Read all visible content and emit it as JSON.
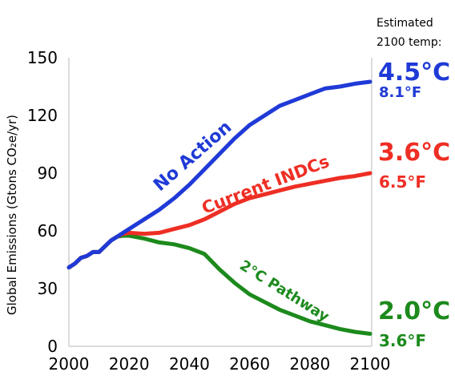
{
  "chart_data": {
    "type": "line",
    "ylabel": "Global Emissions (Gtons CO₂e/yr)",
    "xlim": [
      2000,
      2100
    ],
    "ylim": [
      0,
      150
    ],
    "x_ticks": [
      2000,
      2020,
      2040,
      2060,
      2080,
      2100
    ],
    "y_ticks": [
      0,
      30,
      60,
      90,
      120,
      150
    ],
    "grid": false,
    "header": [
      "Estimated",
      "2100 temp:"
    ],
    "series": [
      {
        "name": "No Action",
        "color": "#1f3ad6",
        "temp_c": "4.5°C",
        "temp_f": "8.1°F",
        "x": [
          2000,
          2002,
          2004,
          2006,
          2008,
          2010,
          2012,
          2014,
          2016,
          2018,
          2020,
          2025,
          2030,
          2035,
          2040,
          2045,
          2050,
          2055,
          2060,
          2065,
          2070,
          2075,
          2080,
          2085,
          2090,
          2095,
          2100
        ],
        "y": [
          41,
          43,
          46,
          47,
          49,
          49,
          52,
          55,
          57,
          59,
          61,
          66,
          71,
          77,
          84,
          92,
          100,
          108,
          115,
          120,
          125,
          128,
          131,
          134,
          135,
          136.5,
          137.5
        ]
      },
      {
        "name": "Current INDCs",
        "color": "#ee2e24",
        "temp_c": "3.6°C",
        "temp_f": "6.5°F",
        "x": [
          2000,
          2002,
          2004,
          2006,
          2008,
          2010,
          2012,
          2014,
          2016,
          2018,
          2020,
          2025,
          2030,
          2035,
          2040,
          2045,
          2050,
          2055,
          2060,
          2065,
          2070,
          2075,
          2080,
          2085,
          2090,
          2095,
          2100
        ],
        "y": [
          41,
          43,
          46,
          47,
          49,
          49,
          52,
          55,
          57,
          58.5,
          59,
          58.5,
          59,
          61,
          63,
          66,
          70,
          74,
          77,
          79,
          81,
          83,
          84.5,
          86,
          87.5,
          88.5,
          90
        ]
      },
      {
        "name": "2°C Pathway",
        "color": "#1c8a1c",
        "temp_c": "2.0°C",
        "temp_f": "3.6°F",
        "x": [
          2000,
          2002,
          2004,
          2006,
          2008,
          2010,
          2012,
          2014,
          2016,
          2018,
          2020,
          2025,
          2030,
          2035,
          2040,
          2045,
          2050,
          2055,
          2060,
          2065,
          2070,
          2075,
          2080,
          2085,
          2090,
          2095,
          2100
        ],
        "y": [
          41,
          43,
          46,
          47,
          49,
          49,
          52,
          55,
          57,
          57.5,
          57.5,
          56,
          54,
          53,
          51,
          48,
          40,
          33,
          27,
          23,
          19,
          16,
          13,
          11,
          9,
          7.5,
          6.5
        ]
      }
    ]
  }
}
